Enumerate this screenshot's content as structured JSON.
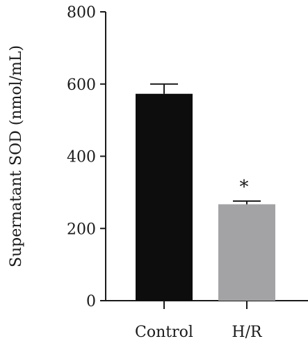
{
  "chart_data": {
    "type": "bar",
    "categories": [
      "Control",
      "H/R"
    ],
    "values": [
      573,
      267
    ],
    "errors": [
      27,
      9
    ],
    "colors": [
      "#0d0d0d",
      "#a3a3a5"
    ],
    "annotations": [
      "",
      "*"
    ],
    "ylabel": "Supernatant SOD (nmol/mL)",
    "xlabel": "",
    "ylim": [
      0,
      800
    ],
    "yticks": [
      0,
      200,
      400,
      600,
      800
    ],
    "ytick_labels": [
      "0",
      "200",
      "400",
      "600",
      "800"
    ],
    "grid": false
  }
}
